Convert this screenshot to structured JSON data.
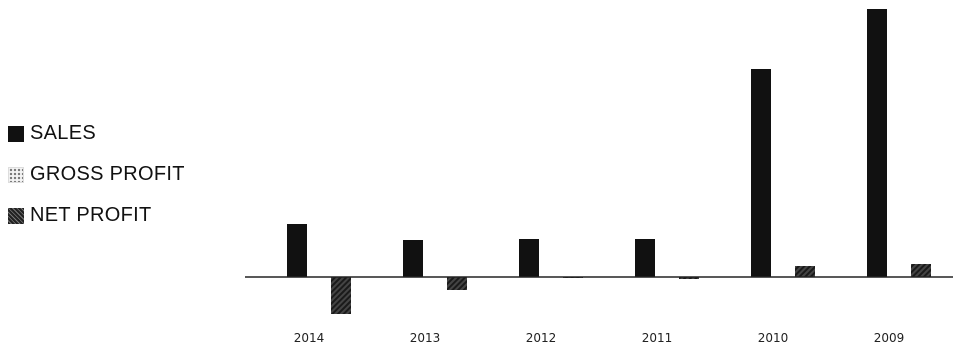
{
  "chart_data": {
    "type": "bar",
    "categories": [
      "2014",
      "2013",
      "2012",
      "2011",
      "2010",
      "2009"
    ],
    "series": [
      {
        "name": "SALES",
        "values": [
          53,
          37,
          38,
          38,
          208,
          268
        ]
      },
      {
        "name": "GROSS PROFIT",
        "values": [
          0,
          0,
          0,
          0,
          0,
          0
        ]
      },
      {
        "name": "NET PROFIT",
        "values": [
          -37,
          -13,
          -1,
          -2,
          11,
          13
        ]
      }
    ],
    "ylim": [
      -40,
      270
    ],
    "grid": false,
    "legend_position": "left",
    "colors": {
      "sales": "#111111",
      "gross_profit": "#bbbbbb",
      "net_profit": "#2a2a2a",
      "axis": "#222222"
    }
  },
  "legend": {
    "sales": "SALES",
    "gross_profit": "GROSS PROFIT",
    "net_profit": "NET PROFIT"
  }
}
